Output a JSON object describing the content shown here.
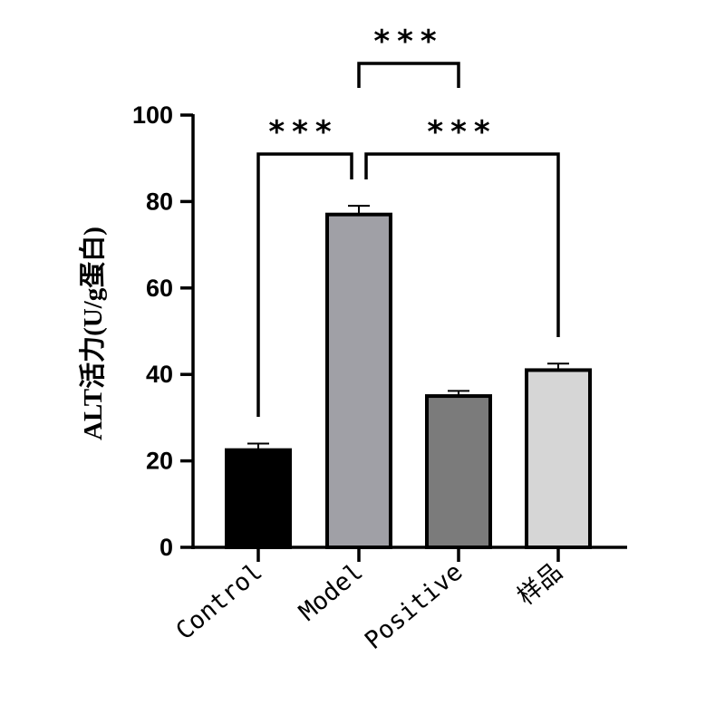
{
  "chart_data": {
    "type": "bar",
    "ylabel": "ALT活力(U/g蛋白)",
    "categories": [
      "Control",
      "Model",
      "Positive",
      "样品"
    ],
    "values": [
      22.5,
      77,
      35,
      41
    ],
    "errors": [
      1.5,
      2,
      1.2,
      1.5
    ],
    "colors": [
      "#000000",
      "#a0a0a6",
      "#7b7b7b",
      "#d6d6d6"
    ],
    "ylim": [
      0,
      100
    ],
    "yticks": [
      "0",
      "20",
      "40",
      "60",
      "80",
      "100"
    ],
    "significance": [
      {
        "from": "Control",
        "to": "Model",
        "label": "***"
      },
      {
        "from": "Model",
        "to": "Positive",
        "label": "***"
      },
      {
        "from": "Model",
        "to": "样品",
        "label": "***"
      }
    ]
  }
}
